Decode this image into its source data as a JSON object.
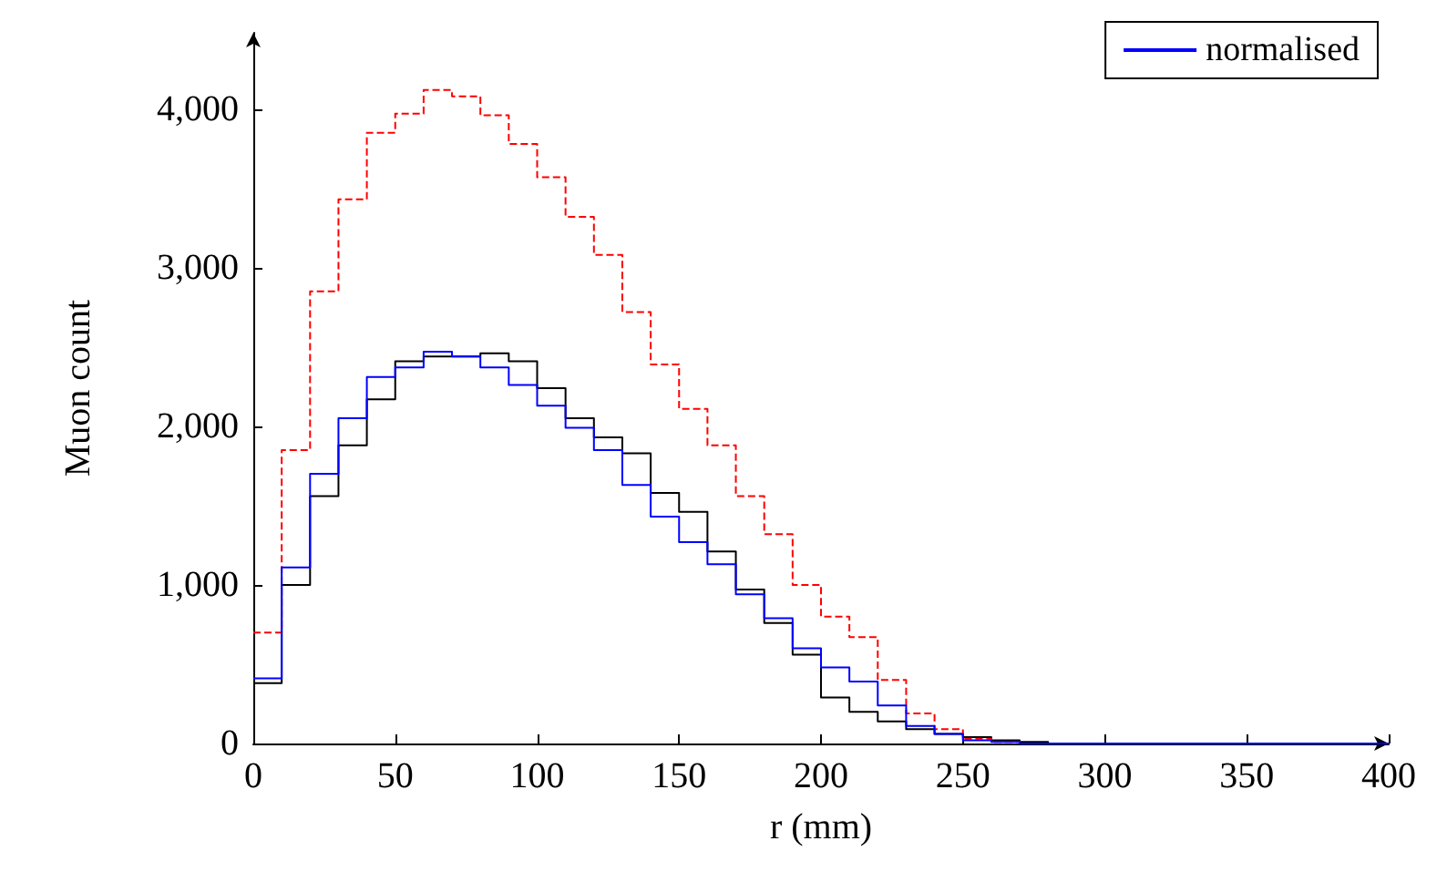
{
  "chart_data": {
    "type": "step",
    "xlabel": "r (mm)",
    "ylabel": "Muon count",
    "x": [
      0,
      10,
      20,
      30,
      40,
      50,
      60,
      70,
      80,
      90,
      100,
      110,
      120,
      130,
      140,
      150,
      160,
      170,
      180,
      190,
      200,
      210,
      220,
      230,
      240,
      250,
      260,
      270,
      280,
      290,
      300,
      310,
      320,
      330,
      340,
      350,
      360,
      370,
      380,
      390,
      400
    ],
    "series": [
      {
        "color": "#000000",
        "line_style": "solid",
        "values": [
          380,
          1000,
          1560,
          1880,
          2170,
          2410,
          2440,
          2440,
          2460,
          2410,
          2240,
          2050,
          1930,
          1830,
          1580,
          1460,
          1210,
          970,
          760,
          560,
          290,
          200,
          140,
          90,
          60,
          40,
          20,
          10,
          0,
          0,
          0,
          0,
          0,
          0,
          0,
          0,
          0,
          0,
          0,
          0,
          0
        ]
      },
      {
        "color": "#ff0000",
        "line_style": "dashed",
        "x": [
          0,
          10,
          20,
          30,
          40,
          50,
          60,
          70,
          80,
          90,
          100,
          110,
          120,
          130,
          140,
          150,
          160,
          170,
          180,
          190,
          200,
          210,
          220,
          230,
          240,
          250,
          260,
          270
        ],
        "values": [
          700,
          1850,
          2850,
          3430,
          3850,
          3970,
          4120,
          4080,
          3960,
          3780,
          3570,
          3320,
          3080,
          2720,
          2390,
          2110,
          1880,
          1560,
          1320,
          1000,
          800,
          670,
          400,
          190,
          90,
          30,
          10,
          0
        ]
      },
      {
        "name": "normalised",
        "color": "#0000ff",
        "line_style": "solid",
        "values": [
          410,
          1110,
          1700,
          2050,
          2310,
          2370,
          2470,
          2440,
          2370,
          2260,
          2130,
          1990,
          1850,
          1630,
          1430,
          1270,
          1130,
          940,
          790,
          600,
          480,
          390,
          240,
          110,
          60,
          20,
          10,
          0,
          0,
          0,
          0,
          0,
          0,
          0,
          0,
          0,
          0,
          0,
          0,
          0,
          0
        ]
      }
    ],
    "xlim": [
      0,
      400
    ],
    "xticks": [
      0,
      50,
      100,
      150,
      200,
      250,
      300,
      350,
      400
    ],
    "ylim": [
      0,
      4480
    ],
    "yticks": [
      0,
      {
        "value": 1000,
        "label": "1,000"
      },
      {
        "value": 2000,
        "label": "2,000"
      },
      {
        "value": 3000,
        "label": "3,000"
      },
      {
        "value": 4000,
        "label": "4,000"
      }
    ],
    "grid": false,
    "legend": "top right"
  }
}
